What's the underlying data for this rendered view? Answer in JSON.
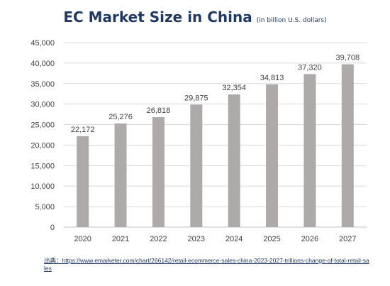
{
  "chart_data": {
    "type": "bar",
    "title": "EC Market Size in China",
    "subtitle": "(in billion U.S. dollars)",
    "categories": [
      "2020",
      "2021",
      "2022",
      "2023",
      "2024",
      "2025",
      "2026",
      "2027"
    ],
    "values": [
      22172,
      25276,
      26818,
      29875,
      32354,
      34813,
      37320,
      39708
    ],
    "value_labels": [
      "22,172",
      "25,276",
      "26,818",
      "29,875",
      "32,354",
      "34,813",
      "37,320",
      "39,708"
    ],
    "y_ticks": [
      "0",
      "5,000",
      "10,000",
      "15,000",
      "20,000",
      "25,000",
      "30,000",
      "35,000",
      "40,000",
      "45,000"
    ],
    "ylim": [
      0,
      45000
    ],
    "grid": true,
    "bar_color": "#aeaaaa"
  },
  "source": "出典：https://www.emarketer.com/chart/266142/retail-ecommerce-sales-china-2023-2027-trillions-change-of-total-retail-sales"
}
